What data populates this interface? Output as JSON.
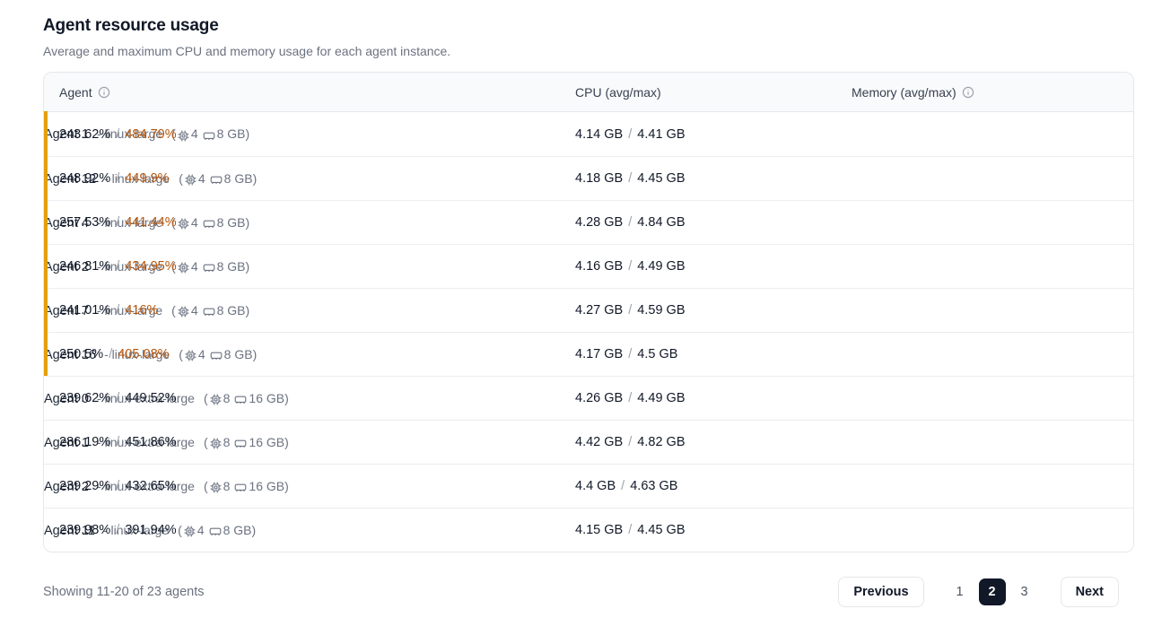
{
  "page": {
    "title": "Agent resource usage",
    "subtitle": "Average and maximum CPU and memory usage for each agent instance."
  },
  "table": {
    "columns": {
      "agent": "Agent",
      "cpu": "CPU (avg/max)",
      "memory": "Memory (avg/max)"
    },
    "spec_open": "(",
    "spec_close": ")",
    "value_separator": "/",
    "rows": [
      {
        "name": "Agent 1",
        "type": "- linux-large",
        "cpus": "4",
        "ram": "8 GB",
        "cpu_avg": "243.62%",
        "cpu_max": "484.79%",
        "cpu_max_warn": true,
        "mem_avg": "4.14 GB",
        "mem_max": "4.41 GB",
        "flagged": true
      },
      {
        "name": "Agent 12",
        "type": "- linux-large",
        "cpus": "4",
        "ram": "8 GB",
        "cpu_avg": "248.92%",
        "cpu_max": "449.9%",
        "cpu_max_warn": true,
        "mem_avg": "4.18 GB",
        "mem_max": "4.45 GB",
        "flagged": true
      },
      {
        "name": "Agent 4",
        "type": "- linux-large",
        "cpus": "4",
        "ram": "8 GB",
        "cpu_avg": "257.53%",
        "cpu_max": "441.44%",
        "cpu_max_warn": true,
        "mem_avg": "4.28 GB",
        "mem_max": "4.84 GB",
        "flagged": true
      },
      {
        "name": "Agent 2",
        "type": "- linux-large",
        "cpus": "4",
        "ram": "8 GB",
        "cpu_avg": "246.81%",
        "cpu_max": "434.95%",
        "cpu_max_warn": true,
        "mem_avg": "4.16 GB",
        "mem_max": "4.49 GB",
        "flagged": true
      },
      {
        "name": "Agent 7",
        "type": "- linux-large",
        "cpus": "4",
        "ram": "8 GB",
        "cpu_avg": "241.01%",
        "cpu_max": "416%",
        "cpu_max_warn": true,
        "mem_avg": "4.27 GB",
        "mem_max": "4.59 GB",
        "flagged": true
      },
      {
        "name": "Agent 16",
        "type": "- linux-large",
        "cpus": "4",
        "ram": "8 GB",
        "cpu_avg": "250.5%",
        "cpu_max": "405.08%",
        "cpu_max_warn": true,
        "mem_avg": "4.17 GB",
        "mem_max": "4.5 GB",
        "flagged": true
      },
      {
        "name": "Agent 0",
        "type": "- linux-extra-large",
        "cpus": "8",
        "ram": "16 GB",
        "cpu_avg": "239.62%",
        "cpu_max": "449.52%",
        "cpu_max_warn": false,
        "mem_avg": "4.26 GB",
        "mem_max": "4.49 GB",
        "flagged": false
      },
      {
        "name": "Agent 1",
        "type": "- linux-extra-large",
        "cpus": "8",
        "ram": "16 GB",
        "cpu_avg": "286.19%",
        "cpu_max": "451.86%",
        "cpu_max_warn": false,
        "mem_avg": "4.42 GB",
        "mem_max": "4.82 GB",
        "flagged": false
      },
      {
        "name": "Agent 2",
        "type": "- linux-extra-large",
        "cpus": "8",
        "ram": "16 GB",
        "cpu_avg": "239.29%",
        "cpu_max": "432.65%",
        "cpu_max_warn": false,
        "mem_avg": "4.4 GB",
        "mem_max": "4.63 GB",
        "flagged": false
      },
      {
        "name": "Agent 11",
        "type": "- linux-large",
        "cpus": "4",
        "ram": "8 GB",
        "cpu_avg": "239.98%",
        "cpu_max": "391.94%",
        "cpu_max_warn": false,
        "mem_avg": "4.15 GB",
        "mem_max": "4.45 GB",
        "flagged": false
      }
    ]
  },
  "footer": {
    "summary": "Showing 11-20 of 23 agents",
    "pagination": {
      "previous_label": "Previous",
      "next_label": "Next",
      "pages": [
        "1",
        "2",
        "3"
      ],
      "current_page": "2"
    }
  },
  "colors": {
    "warning_bar": "#E3A008",
    "warning_text": "#B45309",
    "current_page_bg": "#111827",
    "header_bg": "#f9fafb"
  }
}
